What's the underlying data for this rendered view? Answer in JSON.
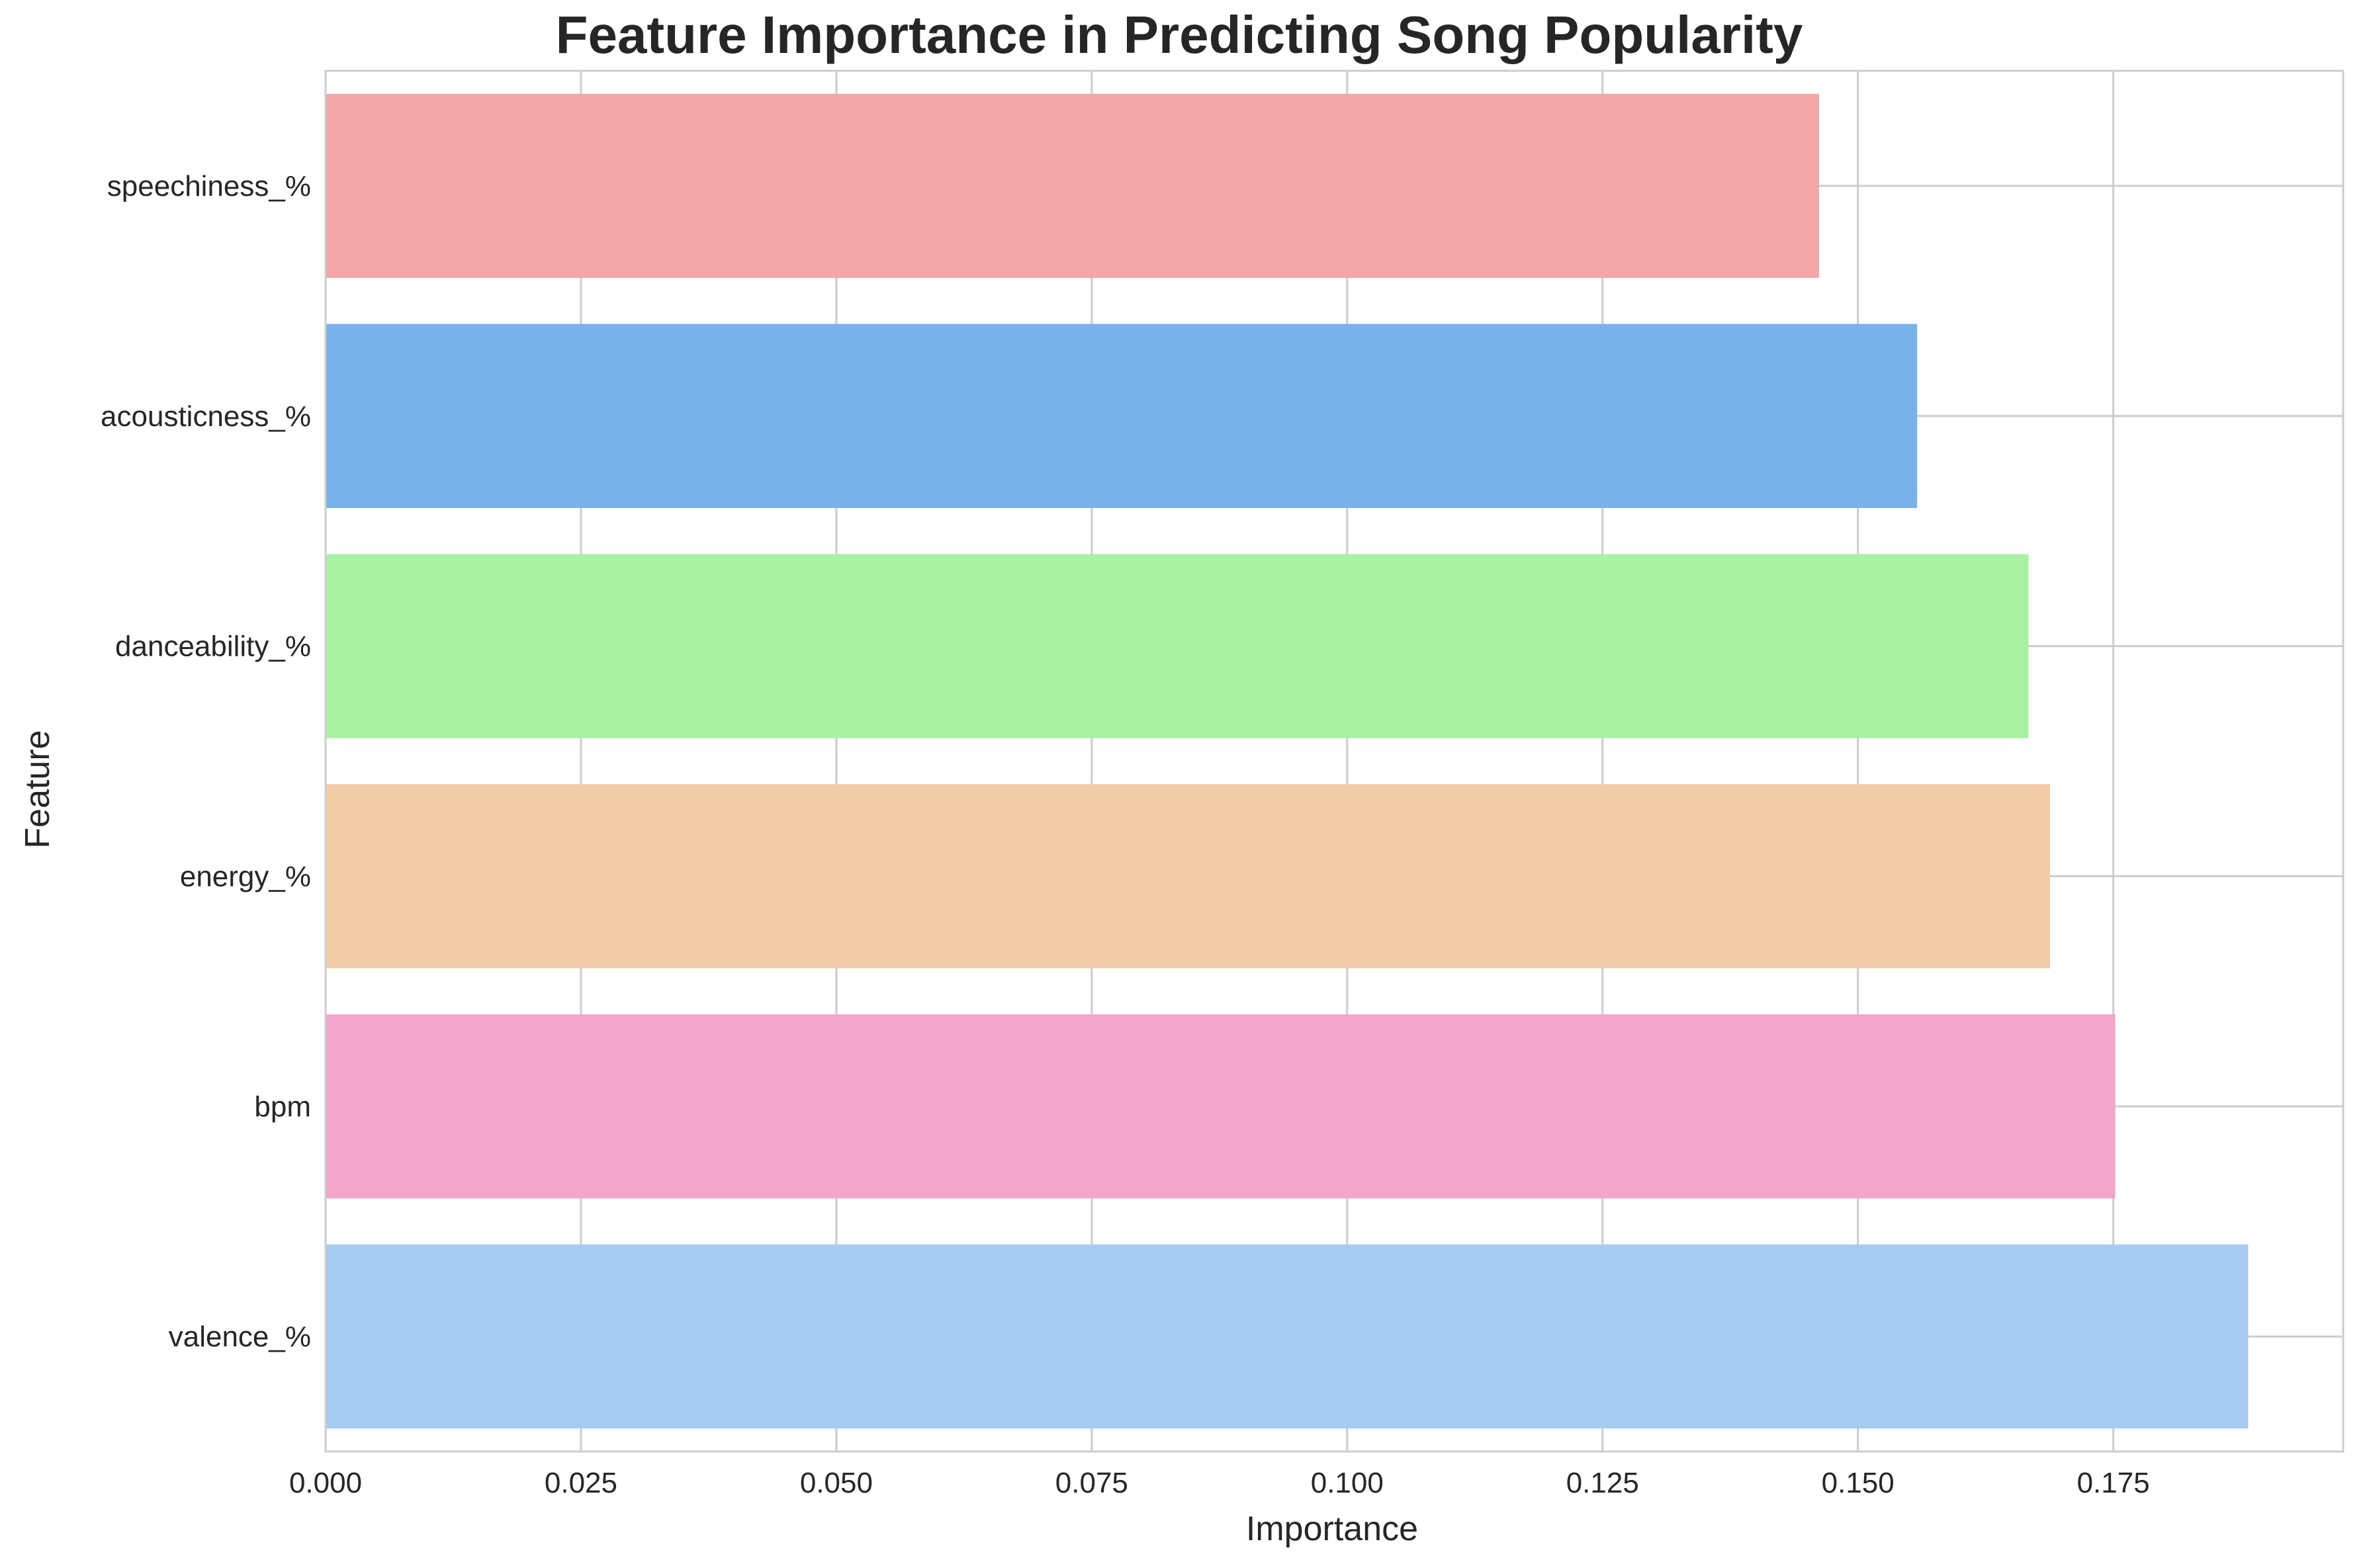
{
  "chart_data": {
    "type": "bar",
    "orientation": "horizontal",
    "title": "Feature Importance in Predicting Song Popularity",
    "xlabel": "Importance",
    "ylabel": "Feature",
    "categories": [
      "speechiness_%",
      "acousticness_%",
      "danceability_%",
      "energy_%",
      "bpm",
      "valence_%"
    ],
    "values": [
      0.1462,
      0.1558,
      0.1667,
      0.1688,
      0.1752,
      0.1882
    ],
    "colors": [
      "#F2A7A8",
      "#79B2EA",
      "#A9F2A4",
      "#F2CBA7",
      "#F2A6CB",
      "#A7CBF2"
    ],
    "xlim": [
      0,
      0.1975
    ],
    "xticks": [
      0.0,
      0.025,
      0.05,
      0.075,
      0.1,
      0.125,
      0.15,
      0.175
    ],
    "xtick_labels": [
      "0.000",
      "0.025",
      "0.050",
      "0.075",
      "0.100",
      "0.125",
      "0.150",
      "0.175"
    ],
    "grid": true,
    "grid_color": "#CCCCCC",
    "spine_color": "#CCCCCC",
    "text_color": "#262626"
  }
}
